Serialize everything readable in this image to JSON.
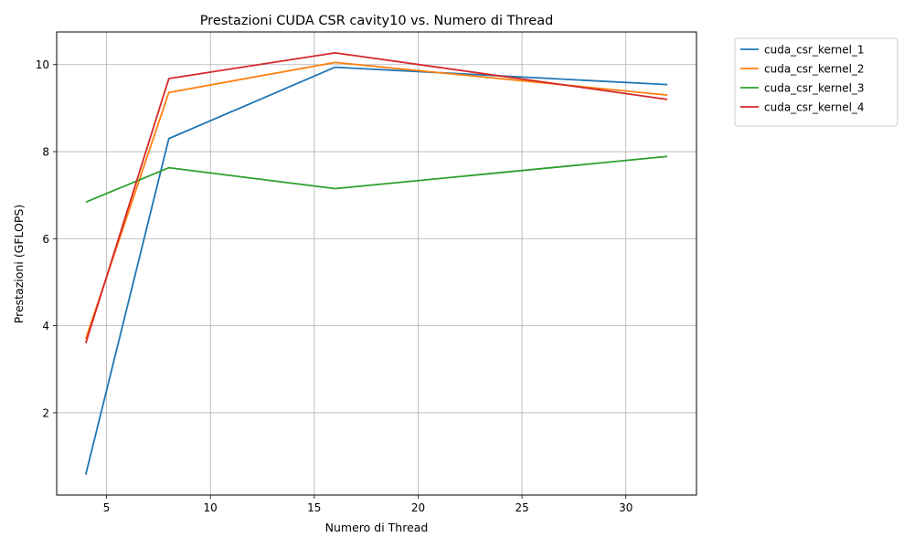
{
  "chart_data": {
    "type": "line",
    "title": "Prestazioni CUDA CSR cavity10 vs. Numero di Thread",
    "xlabel": "Numero di Thread",
    "ylabel": "Prestazioni (GFLOPS)",
    "x": [
      4,
      8,
      16,
      32
    ],
    "xlim": [
      2.6,
      33.4
    ],
    "ylim": [
      0.11,
      10.75
    ],
    "xticks": [
      5,
      10,
      15,
      20,
      25,
      30
    ],
    "yticks": [
      2,
      4,
      6,
      8,
      10
    ],
    "grid": true,
    "legend_position": "outside-top-right",
    "series": [
      {
        "name": "cuda_csr_kernel_1",
        "color": "#1f77b4",
        "values": [
          0.58,
          8.3,
          9.94,
          9.54
        ]
      },
      {
        "name": "cuda_csr_kernel_2",
        "color": "#ff7f0e",
        "values": [
          3.7,
          9.36,
          10.05,
          9.3
        ]
      },
      {
        "name": "cuda_csr_kernel_3",
        "color": "#2ca02c",
        "values": [
          6.84,
          7.63,
          7.15,
          7.89
        ]
      },
      {
        "name": "cuda_csr_kernel_4",
        "color": "#d62728",
        "values": [
          3.6,
          9.68,
          10.27,
          9.2
        ]
      }
    ]
  }
}
